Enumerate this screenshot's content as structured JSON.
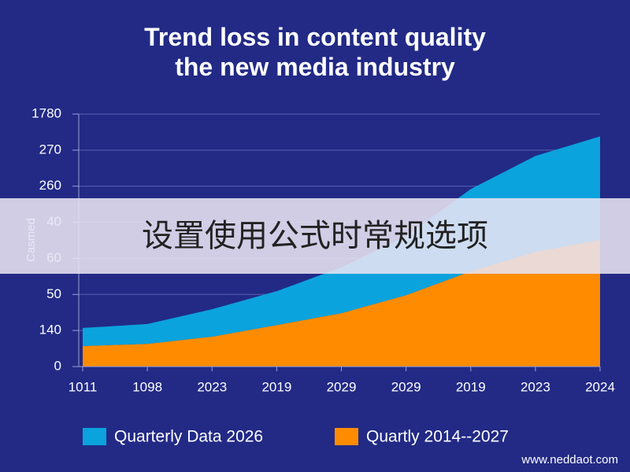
{
  "chart_data": {
    "type": "stacked_area",
    "title": "Trend loss in content quality\nthe new media industry",
    "y_label": "Casmed",
    "categories": [
      "1011",
      "1098",
      "2023",
      "2019",
      "2029",
      "2029",
      "2019",
      "2023",
      "2024"
    ],
    "series": [
      {
        "name": "Quartly 2014‑-2027",
        "color": "#ff8c00",
        "values": [
          0.57,
          0.63,
          0.83,
          1.15,
          1.48,
          1.98,
          2.64,
          3.18,
          3.51
        ]
      },
      {
        "name": "Quarterly Data 2026",
        "color": "#0ba3dd",
        "values": [
          0.5,
          0.55,
          0.76,
          0.94,
          1.27,
          1.64,
          2.28,
          2.66,
          2.87
        ]
      }
    ],
    "ylim": [
      0,
      7
    ],
    "yticks": [
      0,
      {
        "value": 1,
        "label": "140"
      },
      {
        "value": 2,
        "label": "50"
      },
      {
        "value": 3,
        "label": "60"
      },
      {
        "value": 4,
        "label": "40"
      },
      {
        "value": 5,
        "label": "260"
      },
      {
        "value": 6,
        "label": "270"
      },
      {
        "value": 7,
        "label": "1780"
      }
    ],
    "grid": true,
    "watermark": "www.neddaot.com"
  },
  "overlay": {
    "text": "设置使用公式时常规选项"
  }
}
